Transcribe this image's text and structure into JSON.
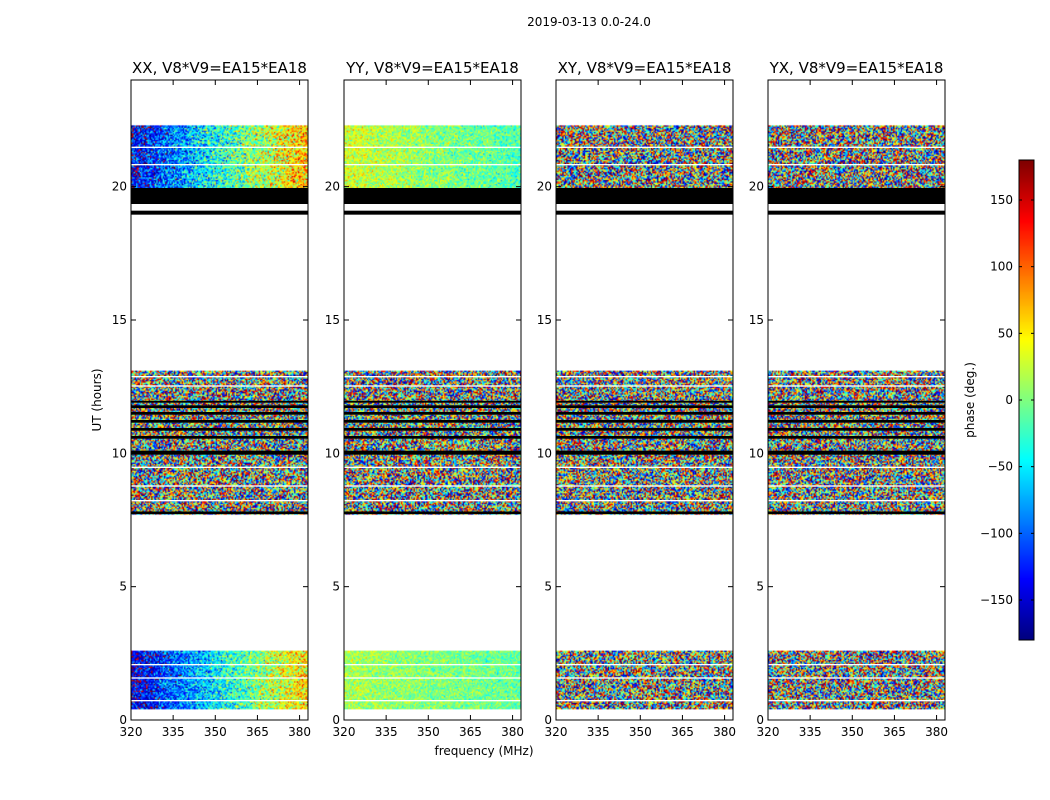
{
  "chart_data": {
    "type": "heatmap",
    "suptitle": "2019-03-13 0.0-24.0",
    "xlabel": "frequency (MHz)",
    "ylabel": "UT (hours)",
    "xlim": [
      320,
      383
    ],
    "ylim": [
      0,
      24
    ],
    "xticks": [
      320,
      335,
      350,
      365,
      380
    ],
    "yticks": [
      0,
      5,
      10,
      15,
      20
    ],
    "colorbar": {
      "label": "phase (deg.)",
      "range": [
        -180,
        180
      ],
      "ticks": [
        150,
        100,
        50,
        0,
        -50,
        -100,
        -150
      ],
      "tick_labels": [
        "150",
        "100",
        "50",
        "0",
        "−50",
        "−100",
        "−150"
      ],
      "colormap": "jet"
    },
    "panels": [
      {
        "title": "XX, V8*V9=EA15*EA18",
        "blocks": [
          {
            "t0": 0.4,
            "t1": 2.6,
            "phase_start_deg": -150,
            "phase_end_deg": 60,
            "noise_deg": 55
          },
          {
            "t0": 7.7,
            "t1": 13.1,
            "phase_start_deg": 0,
            "phase_end_deg": 0,
            "noise_deg": 180
          },
          {
            "t0": 19.9,
            "t1": 22.3,
            "phase_start_deg": -140,
            "phase_end_deg": 70,
            "noise_deg": 60
          }
        ]
      },
      {
        "title": "YY, V8*V9=EA15*EA18",
        "blocks": [
          {
            "t0": 0.4,
            "t1": 2.6,
            "phase_start_deg": 15,
            "phase_end_deg": -10,
            "noise_deg": 30
          },
          {
            "t0": 7.7,
            "t1": 13.1,
            "phase_start_deg": 0,
            "phase_end_deg": 0,
            "noise_deg": 180
          },
          {
            "t0": 19.9,
            "t1": 22.3,
            "phase_start_deg": 30,
            "phase_end_deg": -20,
            "noise_deg": 35
          }
        ]
      },
      {
        "title": "XY, V8*V9=EA15*EA18",
        "blocks": [
          {
            "t0": 0.4,
            "t1": 2.6,
            "phase_start_deg": 0,
            "phase_end_deg": 0,
            "noise_deg": 180
          },
          {
            "t0": 7.7,
            "t1": 13.1,
            "phase_start_deg": 0,
            "phase_end_deg": 0,
            "noise_deg": 180
          },
          {
            "t0": 19.9,
            "t1": 22.3,
            "phase_start_deg": 0,
            "phase_end_deg": 0,
            "noise_deg": 180
          }
        ]
      },
      {
        "title": "YX, V8*V9=EA15*EA18",
        "blocks": [
          {
            "t0": 0.4,
            "t1": 2.6,
            "phase_start_deg": 0,
            "phase_end_deg": 0,
            "noise_deg": 180
          },
          {
            "t0": 7.7,
            "t1": 13.1,
            "phase_start_deg": 0,
            "phase_end_deg": 0,
            "noise_deg": 180
          },
          {
            "t0": 19.9,
            "t1": 22.3,
            "phase_start_deg": 0,
            "phase_end_deg": 0,
            "noise_deg": 180
          }
        ]
      }
    ],
    "flagged_black_bands_hours": [
      [
        18.95,
        19.1
      ],
      [
        19.35,
        19.95
      ],
      [
        7.72,
        7.82
      ],
      [
        9.95,
        10.1
      ],
      [
        10.55,
        10.65
      ],
      [
        10.85,
        10.95
      ],
      [
        11.15,
        11.25
      ],
      [
        11.45,
        11.55
      ],
      [
        11.7,
        11.8
      ],
      [
        11.9,
        11.97
      ]
    ],
    "gap_white_lines_hours": [
      [
        0.7,
        0.75
      ],
      [
        1.55,
        1.6
      ],
      [
        2.05,
        2.1
      ],
      [
        8.2,
        8.25
      ],
      [
        8.75,
        8.8
      ],
      [
        9.45,
        9.5
      ],
      [
        12.5,
        12.55
      ],
      [
        12.85,
        12.9
      ],
      [
        20.8,
        20.85
      ],
      [
        21.45,
        21.5
      ]
    ]
  }
}
